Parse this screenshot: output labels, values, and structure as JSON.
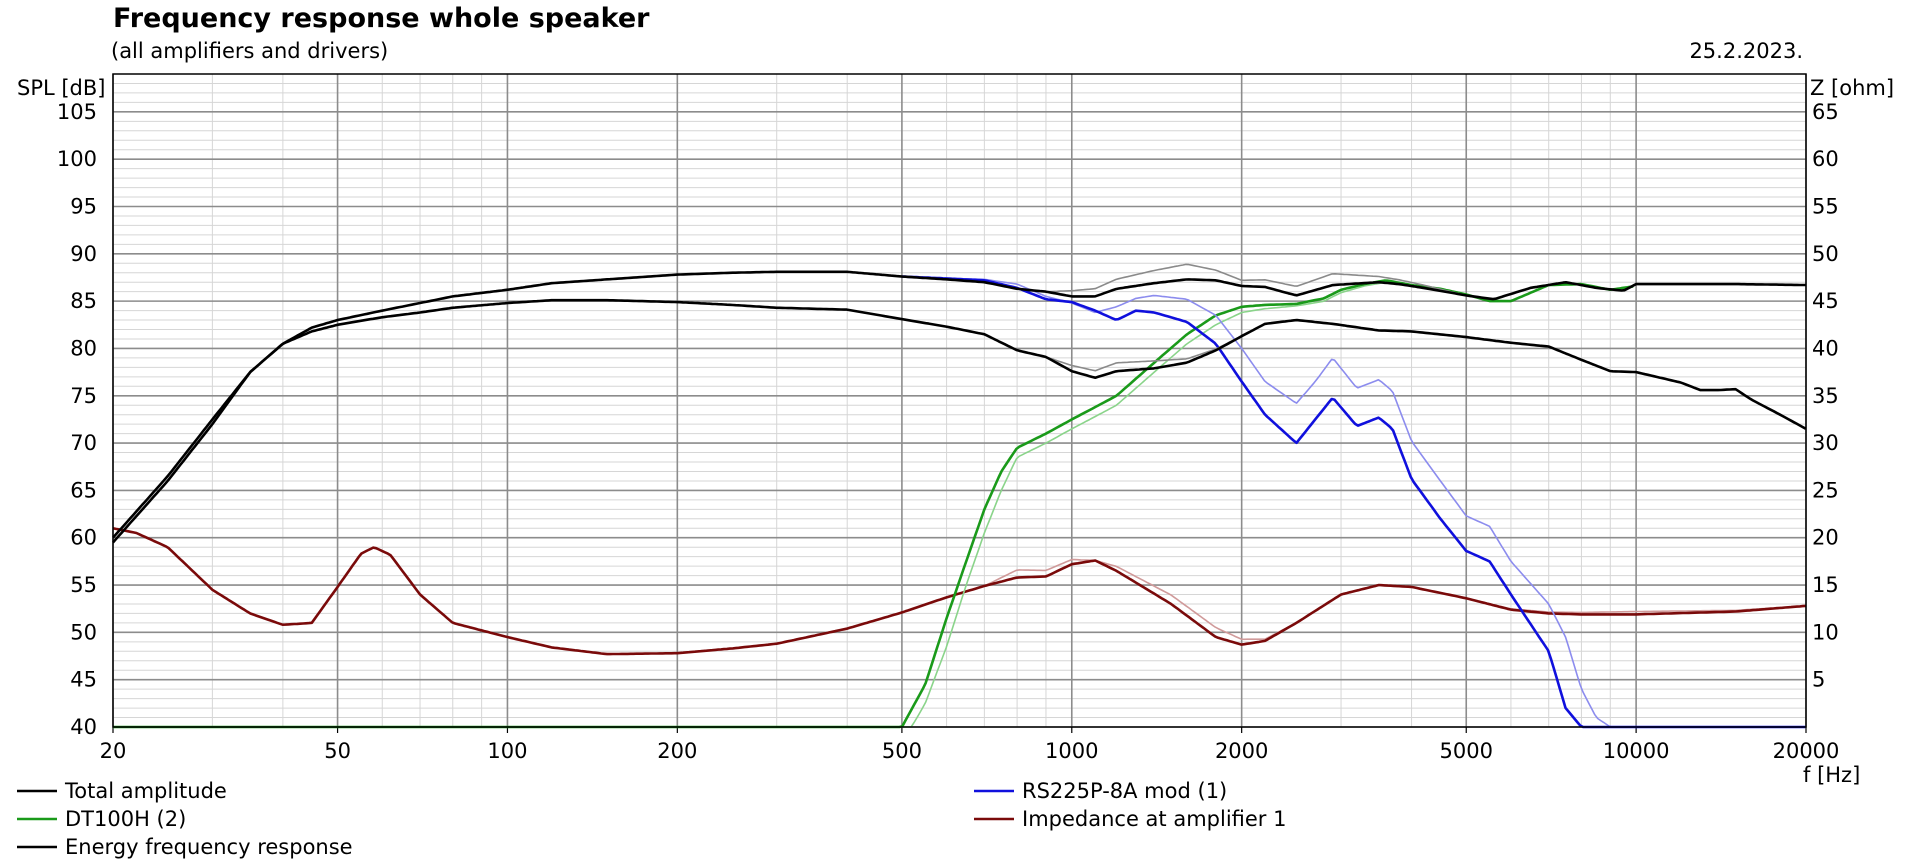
{
  "chart_data": {
    "type": "line",
    "title": "Frequency response whole speaker",
    "subtitle": "(all amplifiers and drivers)",
    "date": "25.2.2023.",
    "xlabel": "f [Hz]",
    "ylabel_left": "SPL [dB]",
    "ylabel_right": "Z [ohm]",
    "x_scale": "log",
    "xlim": [
      20,
      20000
    ],
    "ylim": [
      40,
      109
    ],
    "y2lim": [
      0,
      69
    ],
    "grid": true,
    "legend_position": "bottom",
    "x_ticks": [
      "20",
      "50",
      "100",
      "200",
      "500",
      "1000",
      "2000",
      "5000",
      "10000",
      "20000"
    ],
    "y_ticks": [
      "105",
      "100",
      "95",
      "90",
      "85",
      "80",
      "75",
      "70",
      "65",
      "60",
      "55",
      "50",
      "45",
      "40"
    ],
    "y2_ticks": [
      "65",
      "60",
      "55",
      "50",
      "45",
      "40",
      "35",
      "30",
      "25",
      "20",
      "15",
      "10",
      "5"
    ],
    "legend": [
      {
        "label": "Total amplitude",
        "color": "#000000"
      },
      {
        "label": "DT100H (2)",
        "color": "#1a9a1a"
      },
      {
        "label": "Energy frequency response",
        "color": "#000000"
      },
      {
        "label": "RS225P-8A mod (1)",
        "color": "#1010dd"
      },
      {
        "label": "Impedance at amplifier 1",
        "color": "#7a0a0a"
      }
    ],
    "series": [
      {
        "name": "Total amplitude",
        "axis": "left",
        "color": "#000000",
        "faint_color": "#8a8a8a",
        "faint_offset": [
          [
            1000,
            0.6
          ],
          [
            1300,
            1.2
          ],
          [
            1600,
            1.6
          ],
          [
            2000,
            0.6
          ],
          [
            2900,
            1.2
          ],
          [
            3500,
            0.6
          ],
          [
            5000,
            0
          ]
        ],
        "x": [
          20,
          25,
          30,
          35,
          40,
          45,
          50,
          60,
          70,
          80,
          100,
          120,
          150,
          200,
          250,
          300,
          400,
          500,
          600,
          700,
          800,
          900,
          1000,
          1100,
          1200,
          1400,
          1600,
          1800,
          2000,
          2200,
          2500,
          2900,
          3500,
          3800,
          4200,
          5000,
          5600,
          6500,
          7500,
          8500,
          9500,
          10000,
          12000,
          15000,
          20000
        ],
        "y": [
          60,
          66.5,
          72.5,
          77.5,
          80.5,
          82.2,
          83,
          84,
          84.8,
          85.5,
          86.2,
          86.9,
          87.3,
          87.8,
          88,
          88.1,
          88.1,
          87.6,
          87.3,
          87,
          86.3,
          86,
          85.5,
          85.5,
          86.3,
          86.9,
          87.3,
          87.2,
          86.6,
          86.5,
          85.6,
          86.7,
          87,
          86.8,
          86.4,
          85.6,
          85.2,
          86.4,
          87,
          86.4,
          86.1,
          86.8,
          86.8,
          86.8,
          86.7
        ]
      },
      {
        "name": "Energy frequency response",
        "axis": "left",
        "color": "#000000",
        "faint_color": "#8a8a8a",
        "faint_offset": [
          [
            1000,
            0.6
          ],
          [
            1300,
            1.0
          ],
          [
            1600,
            0.4
          ],
          [
            1900,
            0
          ]
        ],
        "x": [
          20,
          25,
          30,
          35,
          40,
          45,
          50,
          60,
          70,
          80,
          100,
          120,
          150,
          200,
          250,
          300,
          400,
          500,
          600,
          700,
          800,
          900,
          1000,
          1100,
          1200,
          1400,
          1600,
          1800,
          2000,
          2200,
          2500,
          2900,
          3500,
          4000,
          5000,
          6000,
          7000,
          8000,
          9000,
          10000,
          12000,
          13000,
          14000,
          15000,
          16000,
          18000,
          20000
        ],
        "y": [
          59.5,
          66,
          72,
          77.5,
          80.5,
          81.8,
          82.5,
          83.3,
          83.8,
          84.3,
          84.8,
          85.1,
          85.1,
          84.9,
          84.6,
          84.3,
          84.1,
          83.1,
          82.3,
          81.5,
          79.8,
          79.1,
          77.6,
          76.9,
          77.6,
          77.9,
          78.5,
          79.8,
          81.3,
          82.6,
          83,
          82.6,
          81.9,
          81.8,
          81.2,
          80.6,
          80.2,
          78.8,
          77.6,
          77.5,
          76.4,
          75.6,
          75.6,
          75.7,
          74.6,
          73,
          71.5
        ]
      },
      {
        "name": "RS225P-8A mod (1)",
        "axis": "left",
        "color": "#1010dd",
        "faint_color": "#8c8cee",
        "x": [
          500,
          600,
          700,
          800,
          900,
          1000,
          1100,
          1200,
          1300,
          1400,
          1600,
          1800,
          2000,
          2200,
          2500,
          2700,
          2900,
          3200,
          3500,
          3700,
          4000,
          4500,
          5000,
          5500,
          6000,
          7000,
          7500,
          8000,
          9000,
          10000,
          20000
        ],
        "y": [
          87.6,
          87.4,
          87.2,
          86.4,
          85.2,
          84.9,
          84,
          83,
          84,
          83.8,
          82.8,
          80.5,
          76.5,
          73,
          70,
          72.5,
          74.8,
          71.8,
          72.7,
          71.5,
          66.2,
          62,
          58.6,
          57.5,
          54,
          48,
          42,
          40,
          40,
          40,
          40
        ],
        "faint_x": [
          500,
          600,
          700,
          800,
          900,
          1000,
          1100,
          1200,
          1300,
          1400,
          1600,
          1800,
          2000,
          2200,
          2500,
          2700,
          2900,
          3200,
          3500,
          3700,
          4000,
          4500,
          5000,
          5500,
          6000,
          7000,
          7500,
          8000,
          8500,
          9000,
          10000,
          20000
        ],
        "faint_y": [
          87.6,
          87.4,
          87.3,
          86.8,
          85.5,
          84.8,
          83.8,
          84.4,
          85.3,
          85.6,
          85.2,
          83.5,
          80,
          76.5,
          74.2,
          76.5,
          79,
          75.8,
          76.7,
          75.5,
          70.2,
          66,
          62.3,
          61.2,
          57.5,
          53,
          49.5,
          44,
          41,
          40,
          40,
          40
        ]
      },
      {
        "name": "DT100H (2)",
        "axis": "left",
        "color": "#1a9a1a",
        "faint_color": "#8ad48a",
        "x": [
          20,
          400,
          500,
          550,
          600,
          650,
          700,
          750,
          800,
          900,
          1000,
          1100,
          1200,
          1400,
          1600,
          1800,
          2000,
          2200,
          2500,
          2800,
          3000,
          3300,
          3600,
          4000,
          4500,
          5000,
          5500,
          6000,
          7000,
          8000,
          9000,
          10000
        ],
        "y": [
          40,
          40,
          40,
          44.5,
          51.5,
          57.5,
          63,
          67,
          69.5,
          71,
          72.5,
          73.8,
          75,
          78.5,
          81.5,
          83.5,
          84.4,
          84.6,
          84.7,
          85.3,
          86.2,
          86.8,
          87.2,
          86.7,
          86.3,
          85.7,
          85,
          85,
          86.7,
          86.8,
          86.2,
          86.6
        ],
        "faint_x": [
          20,
          400,
          520,
          550,
          600,
          650,
          700,
          750,
          800,
          900,
          1000,
          1100,
          1200,
          1400,
          1600,
          1800,
          2000,
          2200,
          2500,
          2800,
          3000,
          3300,
          3600,
          4000,
          4500,
          5000,
          5500
        ],
        "faint_y": [
          40,
          40,
          40,
          42.5,
          48.5,
          55,
          60.5,
          65,
          68.5,
          70,
          71.5,
          72.8,
          74,
          77.5,
          80.5,
          82.5,
          83.8,
          84.2,
          84.5,
          85,
          85.9,
          86.6,
          87,
          86.7,
          86.3,
          85.7,
          85
        ]
      },
      {
        "name": "Impedance at amplifier 1",
        "axis": "right",
        "color": "#7a0a0a",
        "faint_color": "#d09a9a",
        "faint_offset": [
          [
            700,
            0
          ],
          [
            800,
            0.8
          ],
          [
            1000,
            0.5
          ],
          [
            1100,
            0
          ],
          [
            1300,
            0.9
          ],
          [
            1800,
            1.0
          ],
          [
            2300,
            0
          ],
          [
            5000,
            0
          ],
          [
            10000,
            0.3
          ],
          [
            20000,
            0
          ]
        ],
        "x": [
          20,
          22,
          25,
          30,
          35,
          40,
          45,
          50,
          55,
          58,
          62,
          70,
          80,
          100,
          120,
          150,
          200,
          250,
          300,
          400,
          500,
          600,
          700,
          800,
          900,
          1000,
          1100,
          1200,
          1500,
          1800,
          2000,
          2200,
          2500,
          3000,
          3500,
          4000,
          5000,
          6000,
          7000,
          8000,
          10000,
          15000,
          20000
        ],
        "y": [
          21,
          20.5,
          19,
          14.5,
          12,
          10.8,
          11,
          14.8,
          18.3,
          19,
          18.2,
          14,
          11,
          9.5,
          8.4,
          7.7,
          7.8,
          8.3,
          8.8,
          10.4,
          12.1,
          13.7,
          14.9,
          15.8,
          15.9,
          17.2,
          17.6,
          16.5,
          13,
          9.5,
          8.7,
          9.1,
          11,
          14,
          15,
          14.8,
          13.6,
          12.4,
          12,
          11.9,
          11.9,
          12.2,
          12.8
        ]
      }
    ]
  }
}
